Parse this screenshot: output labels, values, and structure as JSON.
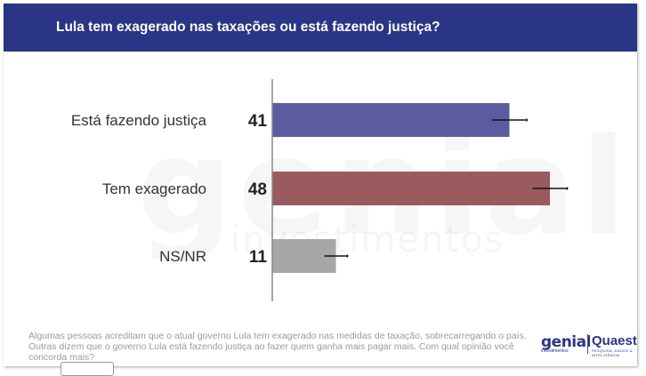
{
  "header": {
    "title": "Lula tem exagerado nas taxações ou está fazendo justiça?"
  },
  "watermark": {
    "big": "genial",
    "small": "investimentos"
  },
  "chart_data": {
    "type": "bar",
    "orientation": "horizontal",
    "title": "Lula tem exagerado nas taxações ou está fazendo justiça?",
    "categories": [
      "Está fazendo justiça",
      "Tem exagerado",
      "NS/NR"
    ],
    "values": [
      41,
      48,
      11
    ],
    "error_margin": [
      3,
      3,
      2
    ],
    "colors": [
      "#5b5b9f",
      "#9a5a5e",
      "#a7a7a7"
    ],
    "xlim": [
      0,
      52
    ],
    "grid": false,
    "legend": "none"
  },
  "footnote": "Algumas pessoas acreditam que o atual governo Lula tem exagerado nas medidas de taxação, sobrecarregando o país. Outras dizem que o governo Lula está fazendo justiça ao fazer quem ganha mais pagar mais. Com qual opinião você concorda mais?",
  "logos": {
    "genial": "genial",
    "genial_sub": "investimentos",
    "quaest": "Quaest",
    "quaest_sub": "PESQUISA, DADOS & INTELIGÊNCIA"
  }
}
